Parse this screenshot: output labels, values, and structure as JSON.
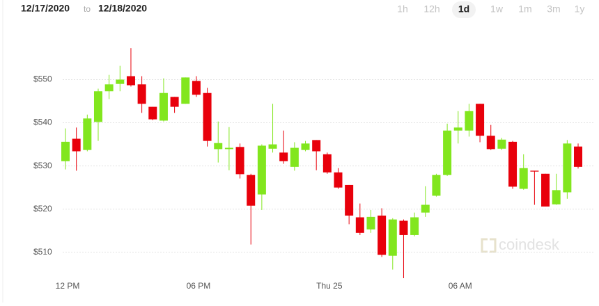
{
  "header": {
    "start_date": "12/17/2020",
    "separator": "to",
    "end_date": "12/18/2020",
    "ranges": [
      "1h",
      "12h",
      "1d",
      "1w",
      "1m",
      "3m",
      "1y"
    ],
    "selected_range": 2
  },
  "watermark": "coindesk",
  "chart_data": {
    "type": "candlestick",
    "categories": [
      "12 PM",
      null,
      null,
      null,
      null,
      null,
      null,
      null,
      null,
      null,
      null,
      null,
      "06 PM",
      null,
      null,
      null,
      null,
      null,
      null,
      null,
      null,
      null,
      null,
      null,
      "Thu 25",
      null,
      null,
      null,
      null,
      null,
      null,
      null,
      null,
      null,
      null,
      null,
      "06 AM",
      null,
      null,
      null,
      null,
      null,
      null,
      null,
      null,
      null,
      null,
      null
    ],
    "open": [
      531.1,
      536.3,
      533.7,
      540.2,
      547.3,
      549.0,
      550.8,
      548.9,
      543.7,
      540.5,
      546.0,
      544.4,
      549.7,
      546.9,
      533.9,
      533.9,
      534.4,
      527.9,
      523.4,
      534.0,
      533.1,
      529.8,
      533.7,
      536.0,
      532.7,
      528.5,
      525.6,
      518.1,
      515.3,
      518.5,
      509.2,
      517.3,
      514.0,
      519.2,
      523.1,
      527.9,
      538.2,
      538.2,
      544.4,
      537.0,
      534.0,
      535.6,
      524.7,
      528.9,
      528.2,
      521.1,
      523.9,
      534.5
    ],
    "high": [
      538.7,
      538.9,
      541.9,
      547.9,
      551.1,
      553.2,
      557.3,
      550.8,
      543.7,
      550.3,
      546.0,
      550.5,
      550.8,
      548.1,
      540.3,
      539.0,
      535.2,
      528.2,
      535.0,
      544.4,
      538.2,
      535.5,
      535.8,
      536.0,
      533.1,
      529.5,
      525.6,
      521.3,
      519.8,
      520.2,
      517.9,
      517.6,
      519.2,
      525.3,
      528.2,
      539.8,
      542.7,
      544.4,
      544.4,
      539.5,
      536.5,
      535.8,
      532.7,
      528.9,
      528.2,
      528.2,
      536.0,
      535.2
    ],
    "low": [
      529.2,
      528.9,
      533.4,
      535.8,
      545.5,
      547.3,
      548.4,
      542.3,
      540.6,
      540.3,
      542.3,
      544.4,
      546.0,
      534.5,
      530.8,
      529.0,
      527.1,
      511.8,
      519.8,
      533.1,
      530.5,
      528.9,
      533.4,
      529.0,
      528.2,
      524.7,
      516.5,
      514.0,
      514.5,
      508.9,
      506.0,
      504.0,
      513.7,
      518.2,
      522.9,
      527.7,
      535.2,
      536.8,
      535.5,
      533.7,
      533.7,
      524.7,
      524.5,
      521.0,
      520.6,
      521.0,
      522.4,
      529.4
    ],
    "close": [
      535.6,
      533.4,
      541.0,
      547.3,
      548.9,
      550.0,
      548.7,
      544.4,
      540.8,
      546.9,
      543.7,
      550.5,
      546.5,
      535.8,
      535.3,
      534.2,
      528.1,
      520.8,
      534.7,
      535.0,
      531.1,
      534.2,
      535.2,
      533.4,
      528.5,
      525.0,
      518.5,
      514.5,
      518.2,
      509.4,
      517.6,
      514.0,
      518.1,
      521.0,
      527.9,
      538.2,
      538.9,
      542.7,
      537.0,
      533.9,
      536.1,
      525.2,
      529.5,
      528.7,
      520.6,
      524.4,
      535.2,
      529.8
    ],
    "up_color": "#82e61e",
    "down_color": "#e8000b",
    "ylim": [
      504,
      562
    ],
    "yticks": [
      {
        "value": 510,
        "label": "$510"
      },
      {
        "value": 520,
        "label": "$520"
      },
      {
        "value": 530,
        "label": "$530"
      },
      {
        "value": 540,
        "label": "$540"
      },
      {
        "value": 550,
        "label": "$550"
      }
    ],
    "grid": true
  }
}
